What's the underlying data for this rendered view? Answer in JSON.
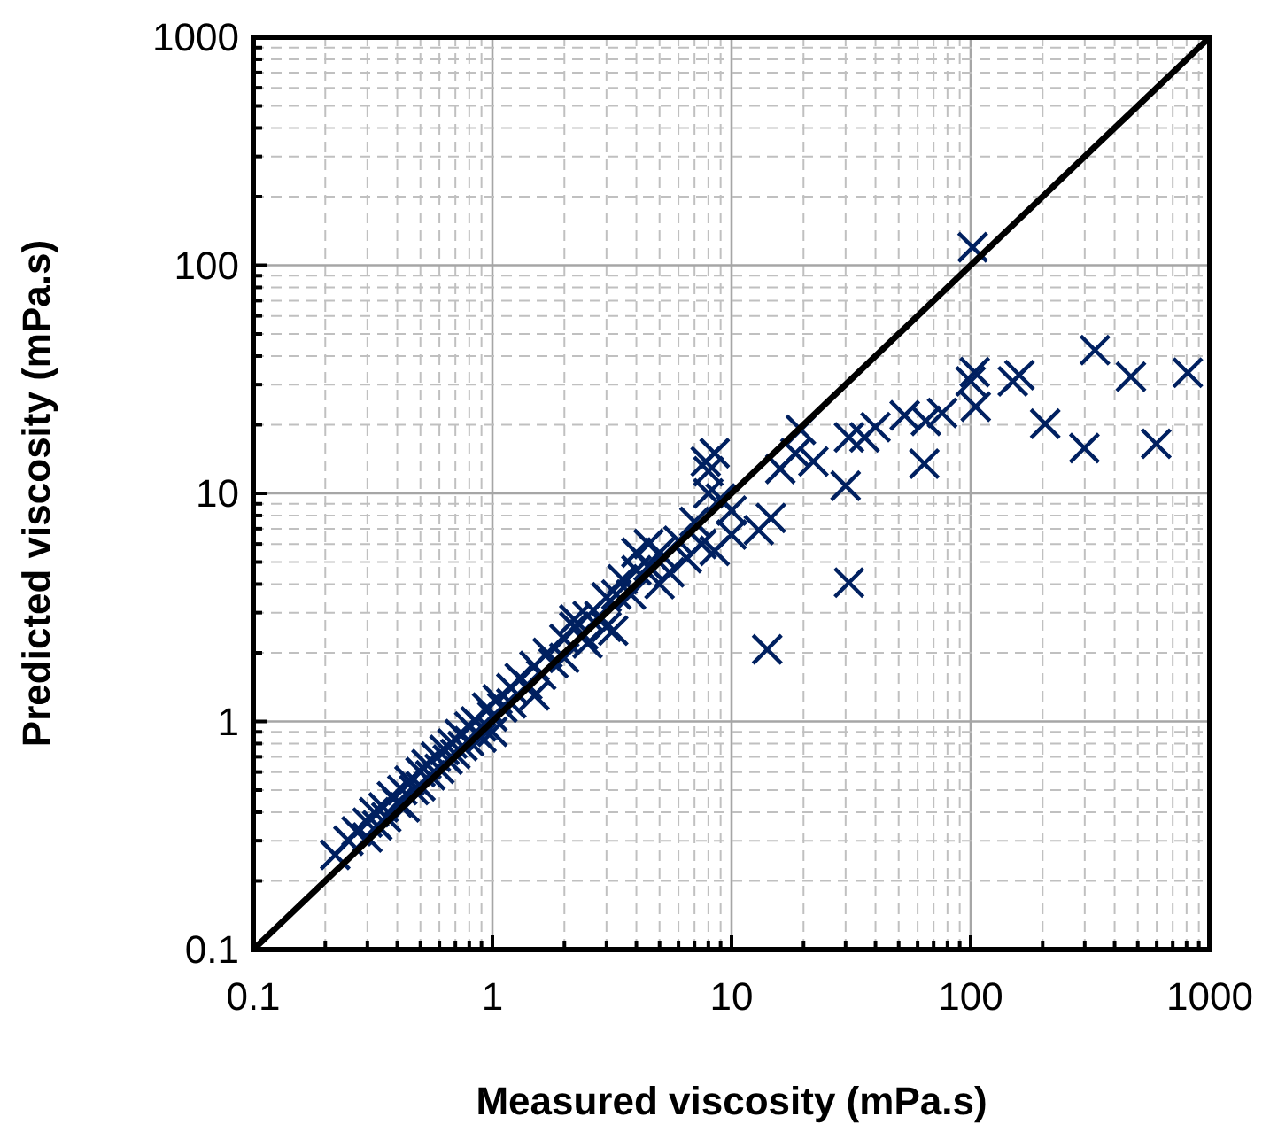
{
  "chart_data": {
    "type": "scatter",
    "xlabel": "Measured viscosity (mPa.s)",
    "ylabel": "Predicted viscosity (mPa.s)",
    "log": "xy",
    "grid": true,
    "marker": "cross",
    "xlim": [
      0.1,
      1000
    ],
    "ylim": [
      0.1,
      1000
    ],
    "xticks": [
      {
        "value": 0.1,
        "label": "0.1"
      },
      {
        "value": 0.2,
        "label": null
      },
      {
        "value": 0.3,
        "label": null
      },
      {
        "value": 0.4,
        "label": null
      },
      {
        "value": 0.5,
        "label": null
      },
      {
        "value": 0.6,
        "label": null
      },
      {
        "value": 0.7,
        "label": null
      },
      {
        "value": 0.8,
        "label": null
      },
      {
        "value": 0.9,
        "label": null
      },
      1,
      {
        "value": 2,
        "label": null
      },
      {
        "value": 3,
        "label": null
      },
      {
        "value": 4,
        "label": null
      },
      {
        "value": 5,
        "label": null
      },
      {
        "value": 6,
        "label": null
      },
      {
        "value": 7,
        "label": null
      },
      {
        "value": 8,
        "label": null
      },
      {
        "value": 9,
        "label": null
      },
      10,
      {
        "value": 20,
        "label": null
      },
      {
        "value": 30,
        "label": null
      },
      {
        "value": 40,
        "label": null
      },
      {
        "value": 50,
        "label": null
      },
      {
        "value": 60,
        "label": null
      },
      {
        "value": 70,
        "label": null
      },
      {
        "value": 80,
        "label": null
      },
      {
        "value": 90,
        "label": null
      },
      100,
      {
        "value": 200,
        "label": null
      },
      {
        "value": 300,
        "label": null
      },
      {
        "value": 400,
        "label": null
      },
      {
        "value": 500,
        "label": null
      },
      {
        "value": 600,
        "label": null
      },
      {
        "value": 700,
        "label": null
      },
      {
        "value": 800,
        "label": null
      },
      {
        "value": 900,
        "label": null
      },
      1000
    ],
    "yticks": [
      {
        "value": 0.1,
        "label": "0.1"
      },
      {
        "value": 0.2,
        "label": null
      },
      {
        "value": 0.3,
        "label": null
      },
      {
        "value": 0.4,
        "label": null
      },
      {
        "value": 0.5,
        "label": null
      },
      {
        "value": 0.6,
        "label": null
      },
      {
        "value": 0.7,
        "label": null
      },
      {
        "value": 0.8,
        "label": null
      },
      {
        "value": 0.9,
        "label": null
      },
      1,
      {
        "value": 2,
        "label": null
      },
      {
        "value": 3,
        "label": null
      },
      {
        "value": 4,
        "label": null
      },
      {
        "value": 5,
        "label": null
      },
      {
        "value": 6,
        "label": null
      },
      {
        "value": 7,
        "label": null
      },
      {
        "value": 8,
        "label": null
      },
      {
        "value": 9,
        "label": null
      },
      10,
      {
        "value": 20,
        "label": null
      },
      {
        "value": 30,
        "label": null
      },
      {
        "value": 40,
        "label": null
      },
      {
        "value": 50,
        "label": null
      },
      {
        "value": 60,
        "label": null
      },
      {
        "value": 70,
        "label": null
      },
      {
        "value": 80,
        "label": null
      },
      {
        "value": 90,
        "label": null
      },
      100,
      {
        "value": 200,
        "label": null
      },
      {
        "value": 300,
        "label": null
      },
      {
        "value": 400,
        "label": null
      },
      {
        "value": 500,
        "label": null
      },
      {
        "value": 600,
        "label": null
      },
      {
        "value": 700,
        "label": null
      },
      {
        "value": 800,
        "label": null
      },
      {
        "value": 900,
        "label": null
      },
      1000
    ],
    "series": [
      {
        "color": "#002060",
        "x": [
          0.22,
          0.25,
          0.27,
          0.3,
          0.3,
          0.32,
          0.33,
          0.35,
          0.36,
          0.38,
          0.4,
          0.42,
          0.43,
          0.45,
          0.47,
          0.5,
          0.5,
          0.53,
          0.55,
          0.58,
          0.6,
          0.63,
          0.65,
          0.68,
          0.7,
          0.73,
          0.75,
          0.8,
          0.8,
          0.85,
          0.9,
          0.95,
          1,
          1,
          1.05,
          1.1,
          1.2,
          1.2,
          1.3,
          1.4,
          1.5,
          1.6,
          1.7,
          1.8,
          2,
          2,
          2.2,
          2.4,
          2.5,
          2.8,
          3,
          3,
          3.3,
          3.5,
          3.8,
          4,
          4.5,
          5,
          5,
          5.5,
          6,
          6.5,
          7,
          7.5,
          8,
          8,
          9,
          1.5,
          2.5,
          3.2,
          0.9,
          2.2,
          4,
          4.5,
          7.8,
          8.5,
          8.5,
          10,
          10,
          13,
          14.6,
          16,
          18.5,
          19.5,
          22,
          30,
          31,
          36,
          40,
          53,
          65,
          76,
          100,
          104,
          105,
          150,
          160,
          102,
          14.1,
          31,
          64,
          205,
          299,
          597,
          809,
          468,
          331
        ],
        "values": [
          0.26,
          0.3,
          0.33,
          0.36,
          0.31,
          0.4,
          0.35,
          0.42,
          0.38,
          0.47,
          0.44,
          0.5,
          0.42,
          0.55,
          0.5,
          0.6,
          0.52,
          0.65,
          0.58,
          0.7,
          0.62,
          0.75,
          0.68,
          0.8,
          0.72,
          0.88,
          0.78,
          0.95,
          0.82,
          1,
          0.95,
          1.15,
          1.05,
          0.9,
          1.25,
          1.15,
          1.4,
          1.2,
          1.55,
          1.45,
          1.75,
          1.6,
          2,
          1.8,
          2.3,
          1.9,
          2.6,
          2.4,
          2.9,
          2.9,
          3.5,
          2.6,
          3.6,
          4.2,
          3.6,
          4.6,
          4.8,
          5.5,
          4,
          4.5,
          6.2,
          5.2,
          7.5,
          6,
          10,
          12.5,
          9.5,
          1.3,
          2.2,
          2.5,
          0.85,
          2.8,
          5.5,
          6,
          13.8,
          15,
          5.6,
          6.6,
          8.4,
          6.9,
          7.8,
          12.8,
          15,
          19,
          13.8,
          10.8,
          17.6,
          17.6,
          19.5,
          22,
          20.8,
          22.5,
          31,
          34,
          24,
          31,
          33,
          120,
          2.07,
          4.06,
          13.5,
          20.2,
          15.8,
          16.5,
          33.8,
          32.5,
          42.5
        ]
      },
      {
        "type": "line",
        "color": "#000000",
        "x": [
          0.1,
          1000
        ],
        "values": [
          0.1,
          1000
        ],
        "marker": "none"
      }
    ]
  }
}
